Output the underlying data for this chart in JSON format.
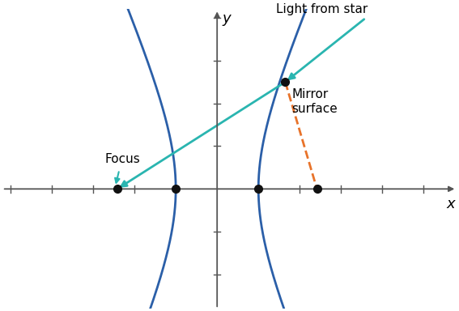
{
  "background_color": "#ffffff",
  "hyperbola_color": "#2b5fa8",
  "hyperbola_linewidth": 2.0,
  "ray_color": "#2ab5b0",
  "ray_linewidth": 2.0,
  "dashed_color": "#e8732a",
  "dashed_linewidth": 2.0,
  "axis_color": "#555555",
  "dot_color": "#111111",
  "dot_size": 7,
  "a": 1.0,
  "b": 2.2,
  "xlim": [
    -5.2,
    5.8
  ],
  "ylim": [
    -2.8,
    4.2
  ],
  "xlabel": "x",
  "ylabel": "y",
  "focus_label": "Focus",
  "mirror_label": "Mirror\nsurface",
  "star_label": "Light from star",
  "mirror_point_x": 1.65,
  "mirror_point_y": 2.5,
  "light_from_x": 3.6,
  "light_from_y": 4.0
}
